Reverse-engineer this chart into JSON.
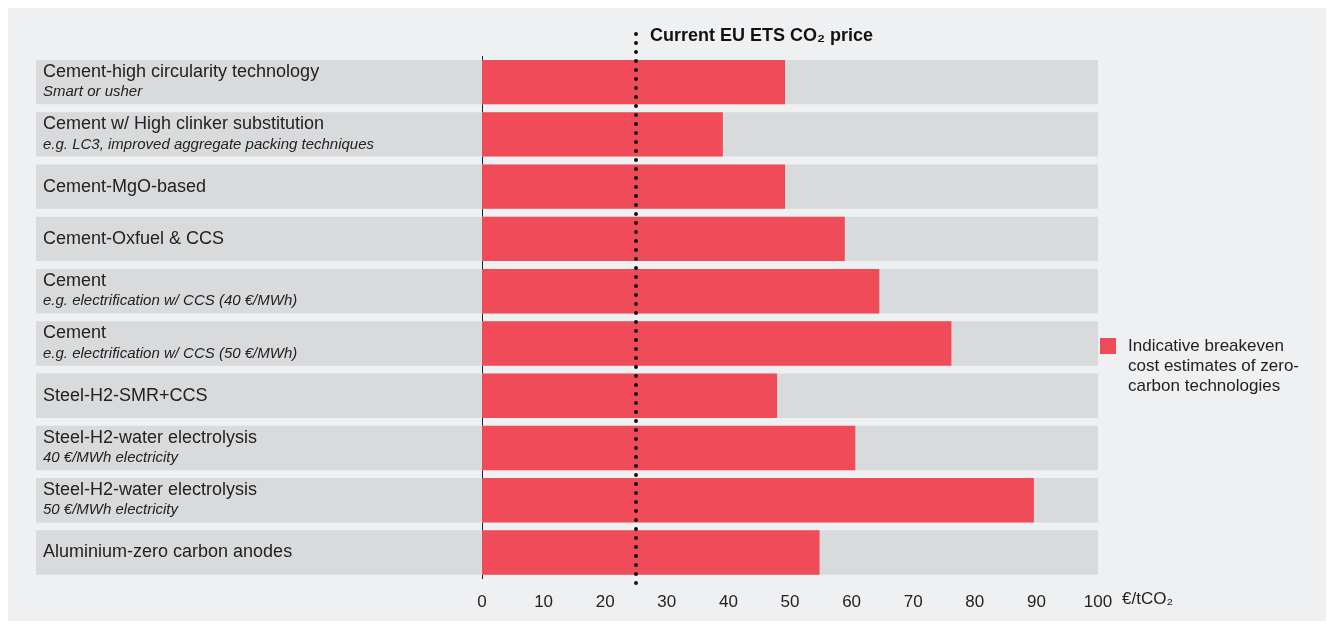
{
  "chart_data": {
    "type": "bar",
    "orientation": "horizontal",
    "categories": [
      "Cement-high circularity technology\nSmart or usher",
      "Cement w/ High clinker substitution\ne.g. LC3, improved aggregate packing techniques",
      "Cement-MgO-based",
      "Cement-Oxfuel & CCS",
      "Cement\ne.g. electrification w/ CCS (40 €/MWh)",
      "Cement\ne.g. electrification w/ CCS (50 €/MWh)",
      "Steel-H2-SMR+CCS",
      "Steel-H2-water electrolysis\n40 €/MWh electricity",
      "Steel-H2-water electrolysis\n50 €/MWh electricity",
      "Aluminium-zero carbon anodes"
    ],
    "series": [
      {
        "name": "Indicative breakeven cost estimates of zero-carbon technologies",
        "color": "#ef4b58",
        "values": [
          49.2,
          39.1,
          49.2,
          58.9,
          64.5,
          76.2,
          47.9,
          60.6,
          89.6,
          54.8
        ]
      }
    ],
    "xlim": [
      0,
      100
    ],
    "xticks": [
      0,
      10,
      20,
      30,
      40,
      50,
      60,
      70,
      80,
      90,
      100
    ],
    "xlabel": "€/tCO₂",
    "ref_lines": [
      {
        "axis": "x",
        "value": 25,
        "label": "Current EU ETS CO₂ price",
        "color": "#111111",
        "line_style": "dotted"
      }
    ],
    "grid": false,
    "legend": "right"
  }
}
